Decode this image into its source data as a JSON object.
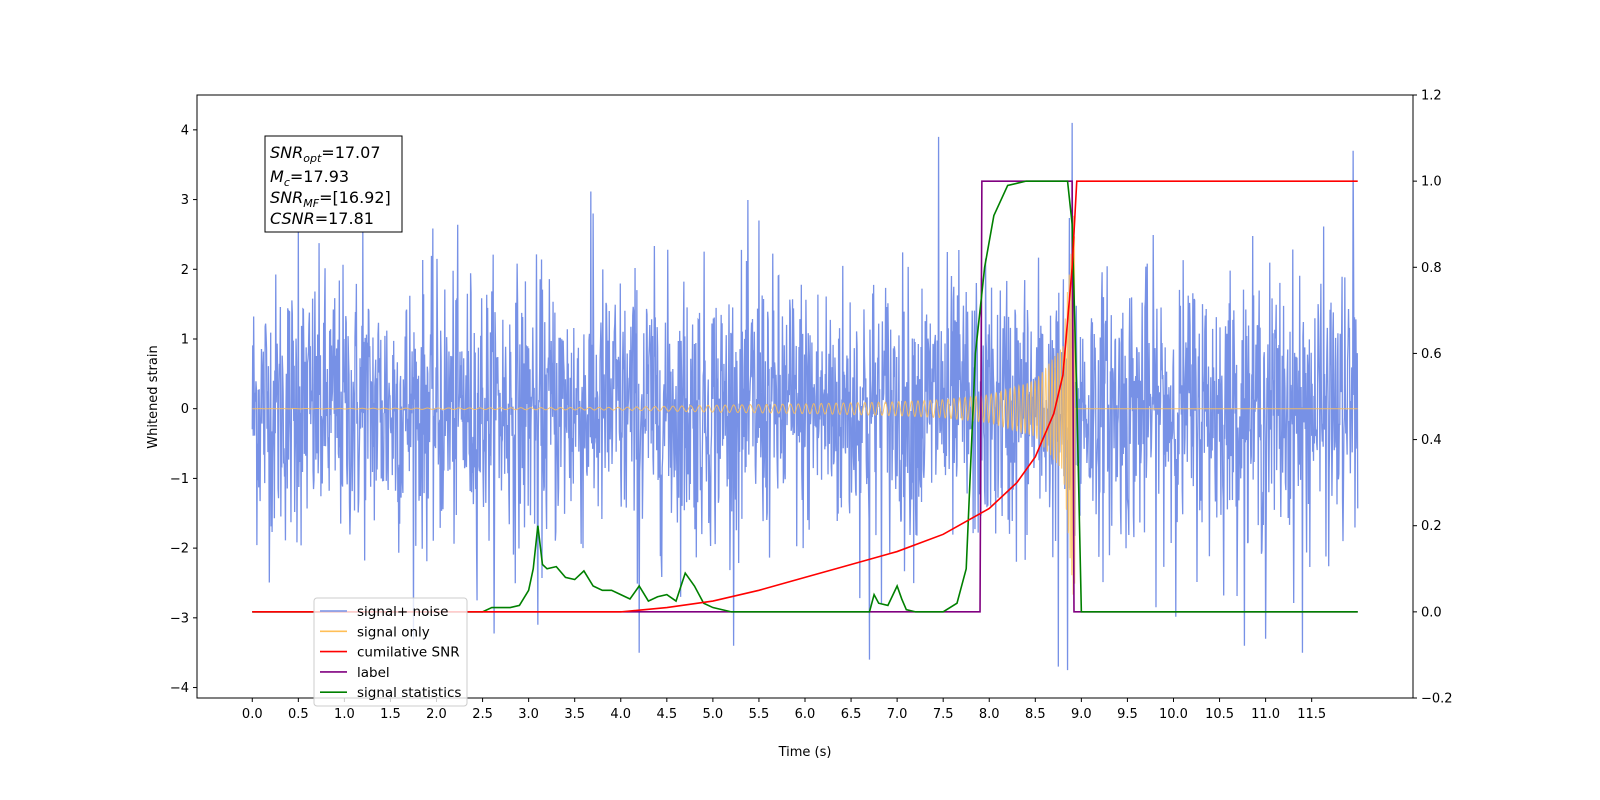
{
  "chart_data": {
    "type": "line",
    "xlabel": "Time (s)",
    "ylabel": "Whitened strain",
    "xlim": [
      -0.6,
      12.6
    ],
    "ylim": [
      -4.15,
      4.5
    ],
    "y2lim": [
      -0.2,
      1.2
    ],
    "x_ticks": [
      0.0,
      0.5,
      1.0,
      1.5,
      2.0,
      2.5,
      3.0,
      3.5,
      4.0,
      4.5,
      5.0,
      5.5,
      6.0,
      6.5,
      7.0,
      7.5,
      8.0,
      8.5,
      9.0,
      9.5,
      10.0,
      10.5,
      11.0,
      11.5
    ],
    "x_tick_labels": [
      "0.0",
      "0.5",
      "1.0",
      "1.5",
      "2.0",
      "2.5",
      "3.0",
      "3.5",
      "4.0",
      "4.5",
      "5.0",
      "5.5",
      "6.0",
      "6.5",
      "7.0",
      "7.5",
      "8.0",
      "8.5",
      "9.0",
      "9.5",
      "10.0",
      "10.5",
      "11.0",
      "11.5"
    ],
    "y_ticks": [
      -4,
      -3,
      -2,
      -1,
      0,
      1,
      2,
      3,
      4
    ],
    "y_tick_labels": [
      "−4",
      "−3",
      "−2",
      "−1",
      "0",
      "1",
      "2",
      "3",
      "4"
    ],
    "y2_ticks": [
      -0.2,
      0.0,
      0.2,
      0.4,
      0.6,
      0.8,
      1.0,
      1.2
    ],
    "y2_tick_labels": [
      "−0.2",
      "0.0",
      "0.2",
      "0.4",
      "0.6",
      "0.8",
      "1.0",
      "1.2"
    ],
    "grid": false,
    "legend_placement": "lower-left",
    "annotation_lines": [
      "SNR_opt=17.07",
      "M_c=17.93",
      "SNR_MF=[16.92]",
      "CSNR=17.81"
    ],
    "series": [
      {
        "name": "signal+ noise",
        "axis": "left",
        "color": "#7791e6",
        "description_of_shape": "whitened noise",
        "x_range": [
          0.0,
          12.0
        ],
        "amplitude_typical": 1.0,
        "peaks": [
          [
            0.5,
            2.6
          ],
          [
            1.2,
            2.6
          ],
          [
            3.7,
            2.8
          ],
          [
            5.5,
            2.7
          ],
          [
            7.45,
            3.9
          ],
          [
            8.9,
            4.1
          ],
          [
            11.95,
            3.7
          ],
          [
            3.1,
            -3.1
          ],
          [
            4.2,
            -3.5
          ],
          [
            6.7,
            -3.6
          ],
          [
            8.75,
            -3.7
          ],
          [
            8.85,
            -3.75
          ],
          [
            11.0,
            -3.3
          ],
          [
            11.4,
            -3.5
          ]
        ]
      },
      {
        "name": "signal only",
        "axis": "left",
        "color": "#ffbf57",
        "x_range": [
          0.0,
          12.0
        ],
        "chirp_merger_time": 8.93,
        "amplitude_at_times": [
          [
            4.0,
            0.02
          ],
          [
            5.0,
            0.05
          ],
          [
            6.0,
            0.07
          ],
          [
            7.0,
            0.1
          ],
          [
            7.5,
            0.13
          ],
          [
            8.0,
            0.2
          ],
          [
            8.5,
            0.4
          ],
          [
            8.8,
            0.9
          ],
          [
            8.93,
            3.0
          ]
        ]
      },
      {
        "name": "cumilative SNR",
        "axis": "right",
        "color": "#ff0000",
        "x": [
          0.0,
          4.0,
          4.5,
          5.0,
          5.5,
          6.0,
          6.5,
          7.0,
          7.5,
          8.0,
          8.3,
          8.5,
          8.7,
          8.8,
          8.9,
          8.95,
          9.0,
          12.0
        ],
        "y": [
          0.0,
          0.0,
          0.01,
          0.025,
          0.05,
          0.08,
          0.11,
          0.14,
          0.18,
          0.24,
          0.3,
          0.36,
          0.46,
          0.55,
          0.8,
          1.0,
          1.0,
          1.0
        ]
      },
      {
        "name": "label",
        "axis": "right",
        "color": "#800080",
        "x": [
          0.0,
          7.9,
          7.92,
          8.9,
          8.92,
          12.0
        ],
        "y": [
          0.0,
          0.0,
          1.0,
          1.0,
          0.0,
          0.0
        ]
      },
      {
        "name": "signal statistics",
        "axis": "right",
        "color": "#008000",
        "x": [
          0.0,
          2.5,
          2.6,
          2.8,
          2.9,
          3.0,
          3.05,
          3.1,
          3.15,
          3.2,
          3.3,
          3.4,
          3.5,
          3.6,
          3.7,
          3.8,
          3.9,
          4.0,
          4.1,
          4.2,
          4.3,
          4.4,
          4.5,
          4.6,
          4.7,
          4.8,
          4.9,
          5.0,
          5.2,
          6.7,
          6.75,
          6.8,
          6.9,
          7.0,
          7.05,
          7.1,
          7.2,
          7.5,
          7.65,
          7.75,
          7.85,
          7.95,
          8.05,
          8.2,
          8.4,
          8.6,
          8.85,
          8.9,
          8.95,
          9.0,
          12.0
        ],
        "y": [
          0.0,
          0.0,
          0.01,
          0.01,
          0.015,
          0.05,
          0.1,
          0.2,
          0.11,
          0.1,
          0.105,
          0.08,
          0.075,
          0.095,
          0.06,
          0.05,
          0.05,
          0.04,
          0.03,
          0.06,
          0.025,
          0.035,
          0.04,
          0.025,
          0.09,
          0.06,
          0.02,
          0.01,
          0.0,
          0.0,
          0.04,
          0.02,
          0.015,
          0.06,
          0.03,
          0.005,
          0.0,
          0.0,
          0.02,
          0.1,
          0.6,
          0.8,
          0.92,
          0.99,
          1.0,
          1.0,
          1.0,
          0.9,
          0.5,
          0.0,
          0.0
        ]
      }
    ]
  }
}
